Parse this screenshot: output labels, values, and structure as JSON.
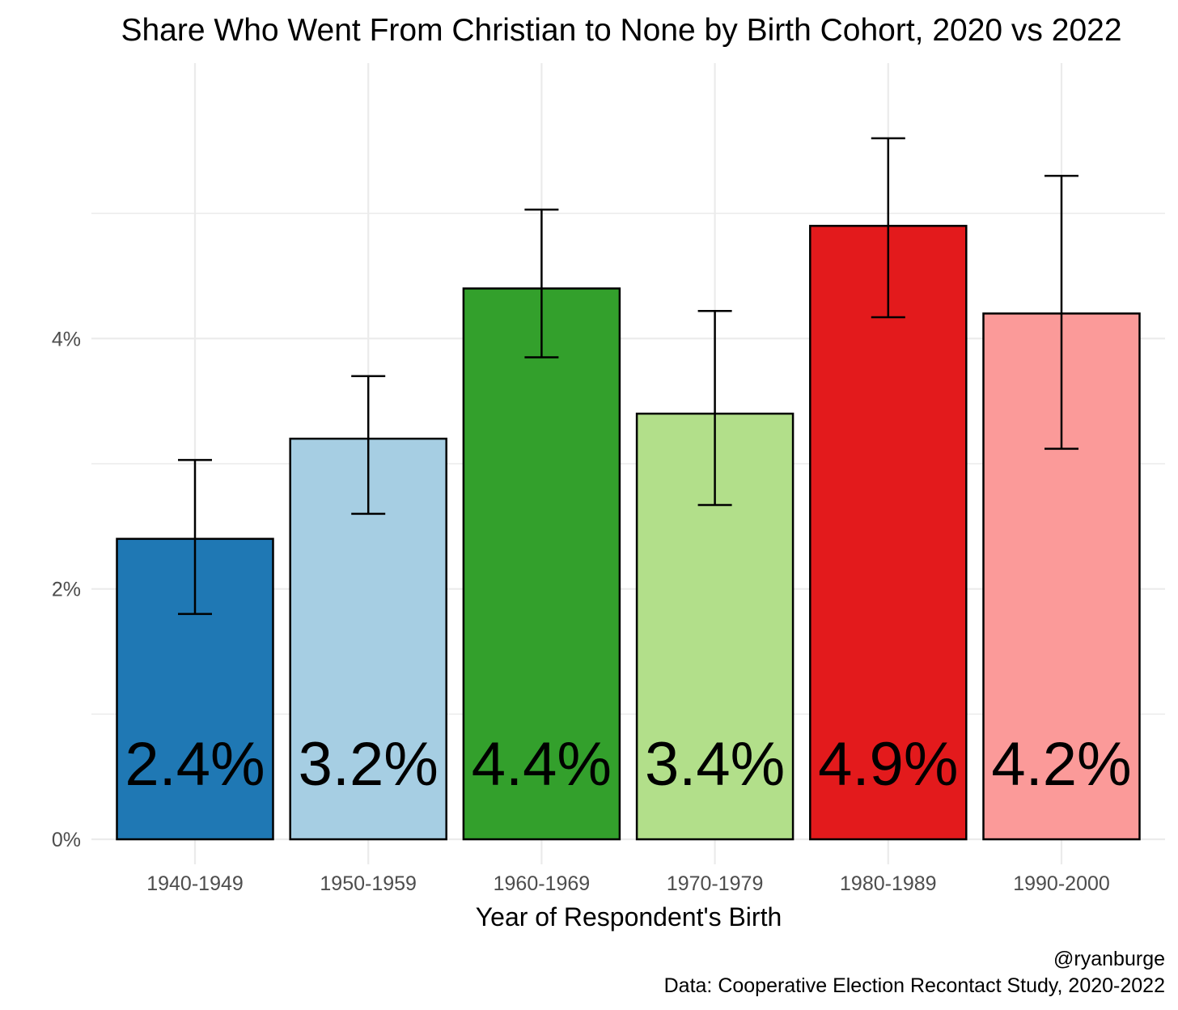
{
  "chart_data": {
    "type": "bar",
    "title": "Share Who Went From Christian to None by Birth Cohort, 2020 vs 2022",
    "xlabel": "Year of Respondent's Birth",
    "ylabel": "",
    "categories": [
      "1940-1949",
      "1950-1959",
      "1960-1969",
      "1970-1979",
      "1980-1989",
      "1990-2000"
    ],
    "values": [
      2.4,
      3.2,
      4.4,
      3.4,
      4.9,
      4.2
    ],
    "error_low": [
      1.8,
      2.6,
      3.85,
      2.67,
      4.17,
      3.12
    ],
    "error_high": [
      3.03,
      3.7,
      5.03,
      4.22,
      5.6,
      5.3
    ],
    "data_labels": [
      "2.4%",
      "3.2%",
      "4.4%",
      "3.4%",
      "4.9%",
      "4.2%"
    ],
    "colors": [
      "#1f78b4",
      "#a6cee3",
      "#33a02c",
      "#b2df8a",
      "#e31a1c",
      "#fb9a99"
    ],
    "ylim": [
      -0.2,
      6.2
    ],
    "yticks": [
      0,
      2,
      4
    ],
    "ytick_labels": [
      "0%",
      "2%",
      "4%"
    ],
    "grid": true,
    "legend": "none"
  },
  "caption": {
    "line1": "@ryanburge",
    "line2": "Data: Cooperative Election Recontact Study, 2020-2022"
  }
}
